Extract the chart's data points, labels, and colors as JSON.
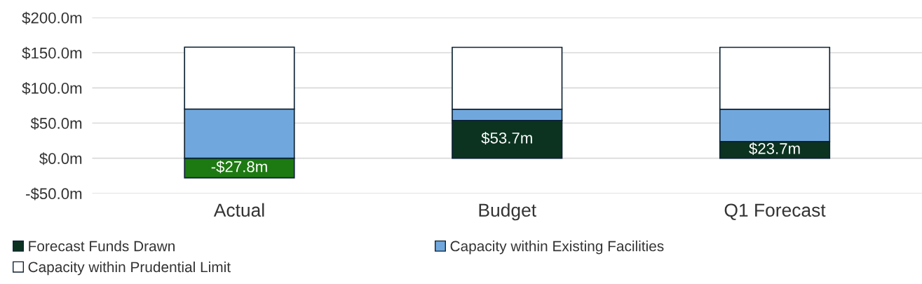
{
  "chart_data": {
    "type": "bar",
    "stacked": true,
    "categories": [
      "Actual",
      "Budget",
      "Q1 Forecast"
    ],
    "series": [
      {
        "name": "Forecast Funds Drawn",
        "color": "#0b3320",
        "colors": [
          "#1d7a12",
          "#0b3320",
          "#0b3320"
        ],
        "values": [
          -27.8,
          53.7,
          23.7
        ],
        "value_labels": [
          "-$27.8m",
          "$53.7m",
          "$23.7m"
        ]
      },
      {
        "name": "Capacity within Existing Facilities",
        "color": "#70a8de",
        "values": [
          70,
          16,
          46
        ]
      },
      {
        "name": "Capacity within Prudential Limit",
        "color": "#ffffff",
        "values": [
          88,
          88,
          88
        ]
      }
    ],
    "ylim": [
      -50,
      200
    ],
    "yticks": [
      {
        "value": -50,
        "label": "-$50.0m"
      },
      {
        "value": 0,
        "label": "$0.0m"
      },
      {
        "value": 50,
        "label": "$50.0m"
      },
      {
        "value": 100,
        "label": "$100.0m"
      },
      {
        "value": 150,
        "label": "$150.0m"
      },
      {
        "value": 200,
        "label": "$200.0m"
      }
    ],
    "grid": "y",
    "legend": "bottom"
  }
}
